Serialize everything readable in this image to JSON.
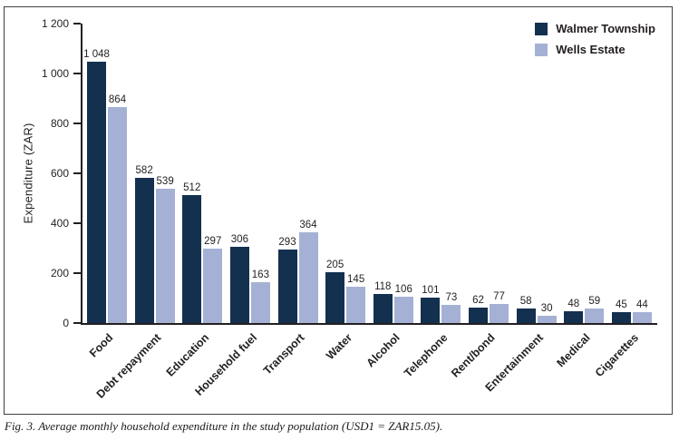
{
  "figure": {
    "caption": "Fig. 3. Average monthly household expenditure in the study population (USD1 = ZAR15.05)."
  },
  "colors": {
    "axis": "#231f20",
    "border": "#404040",
    "walmer_township": "#14304f",
    "wells_estate": "#a5b1d4"
  },
  "chart_data": {
    "type": "bar",
    "title": "",
    "xlabel": "",
    "ylabel": "Expenditure (ZAR)",
    "ylim": [
      0,
      1200
    ],
    "grid": false,
    "legend_position": "top-right",
    "yticks": [
      {
        "value": 0,
        "label": "0"
      },
      {
        "value": 200,
        "label": "200"
      },
      {
        "value": 400,
        "label": "400"
      },
      {
        "value": 600,
        "label": "600"
      },
      {
        "value": 800,
        "label": "800"
      },
      {
        "value": 1000,
        "label": "1 000"
      },
      {
        "value": 1200,
        "label": "1 200"
      }
    ],
    "categories": [
      "Food",
      "Debt repayment",
      "Education",
      "Household fuel",
      "Transport",
      "Water",
      "Alcohol",
      "Telephone",
      "Rent/bond",
      "Entertainment",
      "Medical",
      "Cigarettes"
    ],
    "series": [
      {
        "name": "Walmer Township",
        "color": "#14304f",
        "values": [
          1048,
          582,
          512,
          306,
          293,
          205,
          118,
          101,
          62,
          58,
          48,
          45
        ],
        "labels": [
          "1 048",
          "582",
          "512",
          "306",
          "293",
          "205",
          "118",
          "101",
          "62",
          "58",
          "48",
          "45"
        ]
      },
      {
        "name": "Wells Estate",
        "color": "#a5b1d4",
        "values": [
          864,
          539,
          297,
          163,
          364,
          145,
          106,
          73,
          77,
          30,
          59,
          44
        ],
        "labels": [
          "864",
          "539",
          "297",
          "163",
          "364",
          "145",
          "106",
          "73",
          "77",
          "30",
          "59",
          "44"
        ]
      }
    ]
  }
}
